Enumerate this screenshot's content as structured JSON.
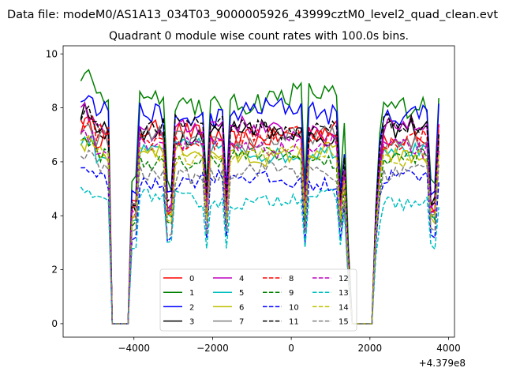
{
  "suptitle": "Data file: modeM0/AS1A13_034T03_9000005926_43999cztM0_level2_quad_clean.evt",
  "chart_data": {
    "type": "line",
    "title": "Quadrant 0 module wise count rates with 100.0s bins.",
    "xlabel": "",
    "ylabel": "",
    "x_offset_label": "+4.379e8",
    "xlim": [
      -5800,
      4150
    ],
    "ylim": [
      -0.5,
      10.3
    ],
    "xticks": [
      -4000,
      -2000,
      0,
      2000,
      4000
    ],
    "xtick_labels": [
      "−4000",
      "−2000",
      "0",
      "2000",
      "4000"
    ],
    "yticks": [
      0,
      2,
      4,
      6,
      8,
      10
    ],
    "ytick_labels": [
      "0",
      "2",
      "4",
      "6",
      "8",
      "10"
    ],
    "grid": false,
    "legend_position": "lower center",
    "legend_columns": 4,
    "x_range": [
      -5350,
      3750
    ],
    "x_step": 100,
    "gaps": [
      [
        -4600,
        -4100
      ],
      [
        1550,
        2050
      ]
    ],
    "series": [
      {
        "name": "0",
        "color": "#ff0000",
        "style": "solid",
        "mean": 7.0,
        "spread": 0.35
      },
      {
        "name": "1",
        "color": "#008000",
        "style": "solid",
        "mean": 8.3,
        "spread": 0.45
      },
      {
        "name": "2",
        "color": "#0000ff",
        "style": "solid",
        "mean": 7.8,
        "spread": 0.4
      },
      {
        "name": "3",
        "color": "#000000",
        "style": "solid",
        "mean": 7.1,
        "spread": 0.35
      },
      {
        "name": "4",
        "color": "#bf00bf",
        "style": "solid",
        "mean": 7.2,
        "spread": 0.35
      },
      {
        "name": "5",
        "color": "#00bfbf",
        "style": "solid",
        "mean": 6.4,
        "spread": 0.3
      },
      {
        "name": "6",
        "color": "#bfbf00",
        "style": "solid",
        "mean": 6.3,
        "spread": 0.3
      },
      {
        "name": "7",
        "color": "#808080",
        "style": "solid",
        "mean": 6.8,
        "spread": 0.35
      },
      {
        "name": "8",
        "color": "#ff0000",
        "style": "dashed",
        "mean": 6.9,
        "spread": 0.35
      },
      {
        "name": "9",
        "color": "#008000",
        "style": "dashed",
        "mean": 6.1,
        "spread": 0.3
      },
      {
        "name": "10",
        "color": "#0000ff",
        "style": "dashed",
        "mean": 5.3,
        "spread": 0.3
      },
      {
        "name": "11",
        "color": "#000000",
        "style": "dashed",
        "mean": 7.3,
        "spread": 0.35
      },
      {
        "name": "12",
        "color": "#bf00bf",
        "style": "dashed",
        "mean": 6.6,
        "spread": 0.3
      },
      {
        "name": "13",
        "color": "#00bfbf",
        "style": "dashed",
        "mean": 4.6,
        "spread": 0.25
      },
      {
        "name": "14",
        "color": "#bfbf00",
        "style": "dashed",
        "mean": 6.2,
        "spread": 0.3
      },
      {
        "name": "15",
        "color": "#808080",
        "style": "dashed",
        "mean": 5.6,
        "spread": 0.3
      }
    ]
  }
}
